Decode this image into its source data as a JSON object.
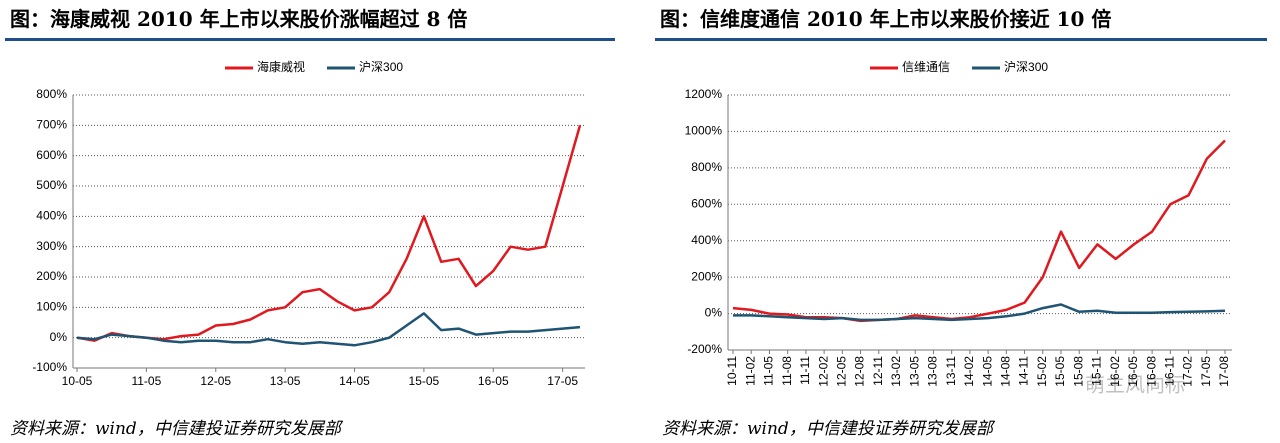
{
  "chart_data": [
    {
      "type": "line",
      "title": "图：海康威视 2010 年上市以来股价涨幅超过 8 倍",
      "categories": [
        "10-05",
        null,
        null,
        null,
        "11-05",
        null,
        null,
        null,
        "12-05",
        null,
        null,
        null,
        "13-05",
        null,
        null,
        null,
        "14-05",
        null,
        null,
        null,
        "15-05",
        null,
        null,
        null,
        "16-05",
        null,
        null,
        null,
        "17-05",
        null
      ],
      "series": [
        {
          "name": "海康威视",
          "color": "#e0191f",
          "values": [
            0,
            -10,
            15,
            5,
            0,
            -5,
            5,
            10,
            40,
            45,
            60,
            90,
            100,
            150,
            160,
            120,
            90,
            100,
            150,
            260,
            400,
            250,
            260,
            170,
            220,
            300,
            290,
            300,
            500,
            700
          ]
        },
        {
          "name": "沪深300",
          "color": "#1f5473",
          "values": [
            0,
            -5,
            10,
            5,
            0,
            -10,
            -15,
            -10,
            -10,
            -15,
            -15,
            -5,
            -15,
            -20,
            -15,
            -20,
            -25,
            -15,
            0,
            40,
            80,
            25,
            30,
            10,
            15,
            20,
            20,
            25,
            30,
            35
          ]
        }
      ],
      "ylim": [
        -100,
        800
      ],
      "yticks": [
        {
          "value": -100,
          "label": "-100%"
        },
        {
          "value": 0,
          "label": "0%"
        },
        {
          "value": 100,
          "label": "100%"
        },
        {
          "value": 200,
          "label": "200%"
        },
        {
          "value": 300,
          "label": "300%"
        },
        {
          "value": 400,
          "label": "400%"
        },
        {
          "value": 500,
          "label": "500%"
        },
        {
          "value": 600,
          "label": "600%"
        },
        {
          "value": 700,
          "label": "700%"
        },
        {
          "value": 800,
          "label": "800%"
        }
      ],
      "grid": true,
      "legend": "top"
    },
    {
      "type": "line",
      "title": "图：信维度通信 2010 年上市以来股价接近 10 倍",
      "categories": [
        "10-11",
        "11-02",
        "11-05",
        "11-08",
        "11-11",
        "12-02",
        "12-05",
        "12-08",
        "12-11",
        "13-02",
        "13-05",
        "13-08",
        "13-11",
        "14-02",
        "14-05",
        "14-08",
        "14-11",
        "15-02",
        "15-05",
        "15-08",
        "15-11",
        "16-02",
        "16-05",
        "16-08",
        "16-11",
        "17-02",
        "17-05",
        "17-08"
      ],
      "series": [
        {
          "name": "信维通信",
          "color": "#e0191f",
          "values": [
            30,
            20,
            0,
            -5,
            -20,
            -20,
            -25,
            -40,
            -35,
            -30,
            -10,
            -20,
            -30,
            -20,
            0,
            20,
            60,
            200,
            450,
            250,
            380,
            300,
            380,
            450,
            600,
            650,
            850,
            950
          ]
        },
        {
          "name": "沪深300",
          "color": "#1f5473",
          "values": [
            -10,
            -10,
            -15,
            -20,
            -25,
            -30,
            -25,
            -35,
            -35,
            -30,
            -25,
            -30,
            -35,
            -30,
            -25,
            -15,
            0,
            30,
            50,
            10,
            15,
            5,
            5,
            5,
            8,
            10,
            12,
            15
          ]
        }
      ],
      "ylim": [
        -200,
        1200
      ],
      "yticks": [
        {
          "value": -200,
          "label": "-200%"
        },
        {
          "value": 0,
          "label": "0%"
        },
        {
          "value": 200,
          "label": "200%"
        },
        {
          "value": 400,
          "label": "400%"
        },
        {
          "value": 600,
          "label": "600%"
        },
        {
          "value": 800,
          "label": "800%"
        },
        {
          "value": 1000,
          "label": "1000%"
        },
        {
          "value": 1200,
          "label": "1200%"
        }
      ],
      "grid": true,
      "legend": "top"
    }
  ],
  "footnotes": [
    "资料来源：wind，中信建投证券研究发展部",
    "资料来源：wind，中信建投证券研究发展部"
  ],
  "watermark": "萌主风向标"
}
